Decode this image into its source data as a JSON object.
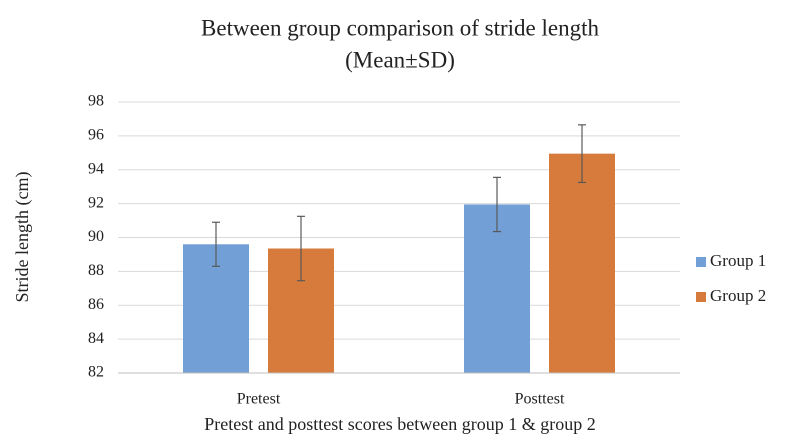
{
  "chart_data": {
    "type": "bar",
    "title": "Between group comparison of stride length",
    "subtitle": "(Mean±SD)",
    "x_label": "Pretest and posttest scores between group 1 & group 2",
    "y_label": "Stride length (cm)",
    "categories": [
      "Pretest",
      "Posttest"
    ],
    "series": [
      {
        "name": "Group 1",
        "color": "#729fd5",
        "values": [
          89.6,
          91.95
        ],
        "errors": [
          1.3,
          1.6
        ]
      },
      {
        "name": "Group 2",
        "color": "#d67b3b",
        "values": [
          89.35,
          94.95
        ],
        "errors": [
          1.9,
          1.7
        ]
      }
    ],
    "ylim": [
      82,
      98
    ],
    "yticks": [
      82,
      84,
      86,
      88,
      90,
      92,
      94,
      96,
      98
    ],
    "grid": true,
    "legend": "right"
  }
}
